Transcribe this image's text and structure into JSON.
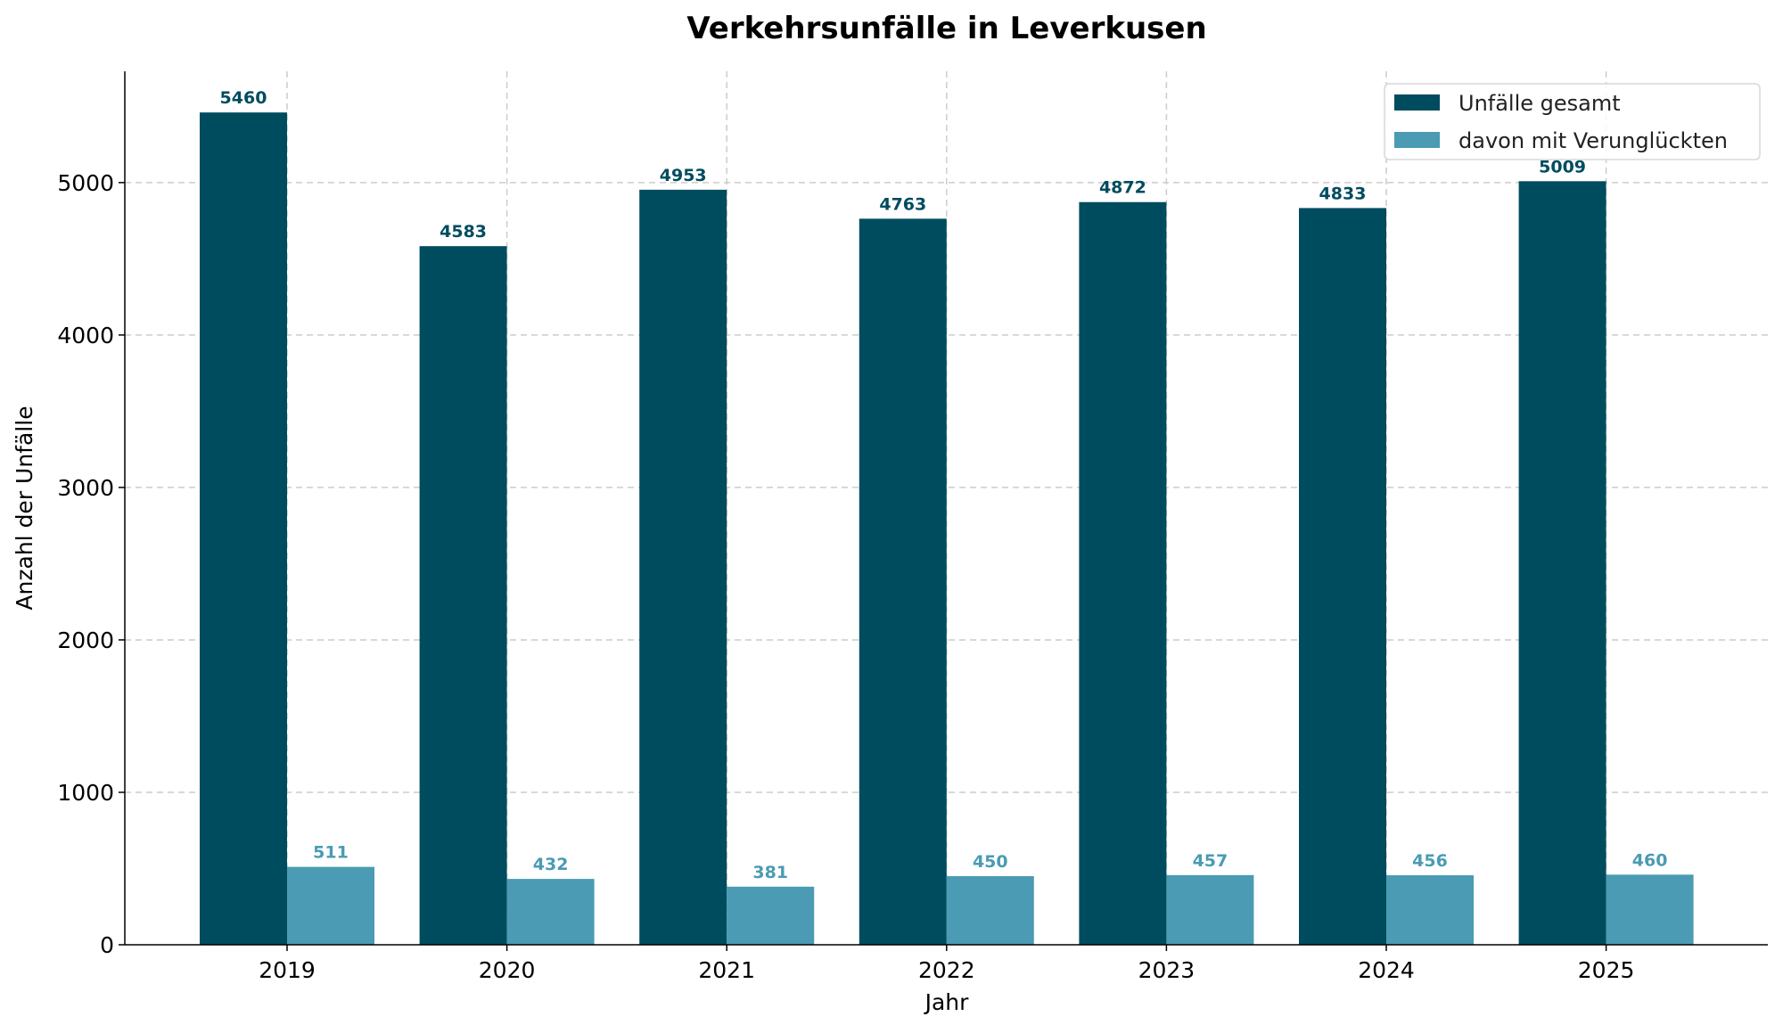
{
  "chart_data": {
    "type": "bar",
    "title": "Verkehrsunfälle in Leverkusen",
    "xlabel": "Jahr",
    "ylabel": "Anzahl der Unfälle",
    "categories": [
      "2019",
      "2020",
      "2021",
      "2022",
      "2023",
      "2024",
      "2025"
    ],
    "series": [
      {
        "name": "Unfälle gesamt",
        "color": "#004c5f",
        "values": [
          5460,
          4583,
          4953,
          4763,
          4872,
          4833,
          5009
        ]
      },
      {
        "name": "davon mit Verunglückten",
        "color": "#4a9bb3",
        "values": [
          511,
          432,
          381,
          450,
          457,
          456,
          460
        ]
      }
    ],
    "yticks": [
      0,
      1000,
      2000,
      3000,
      4000,
      5000
    ],
    "ylim": [
      0,
      5730
    ],
    "grid": true,
    "legend": "top-right",
    "data_labels": true
  }
}
